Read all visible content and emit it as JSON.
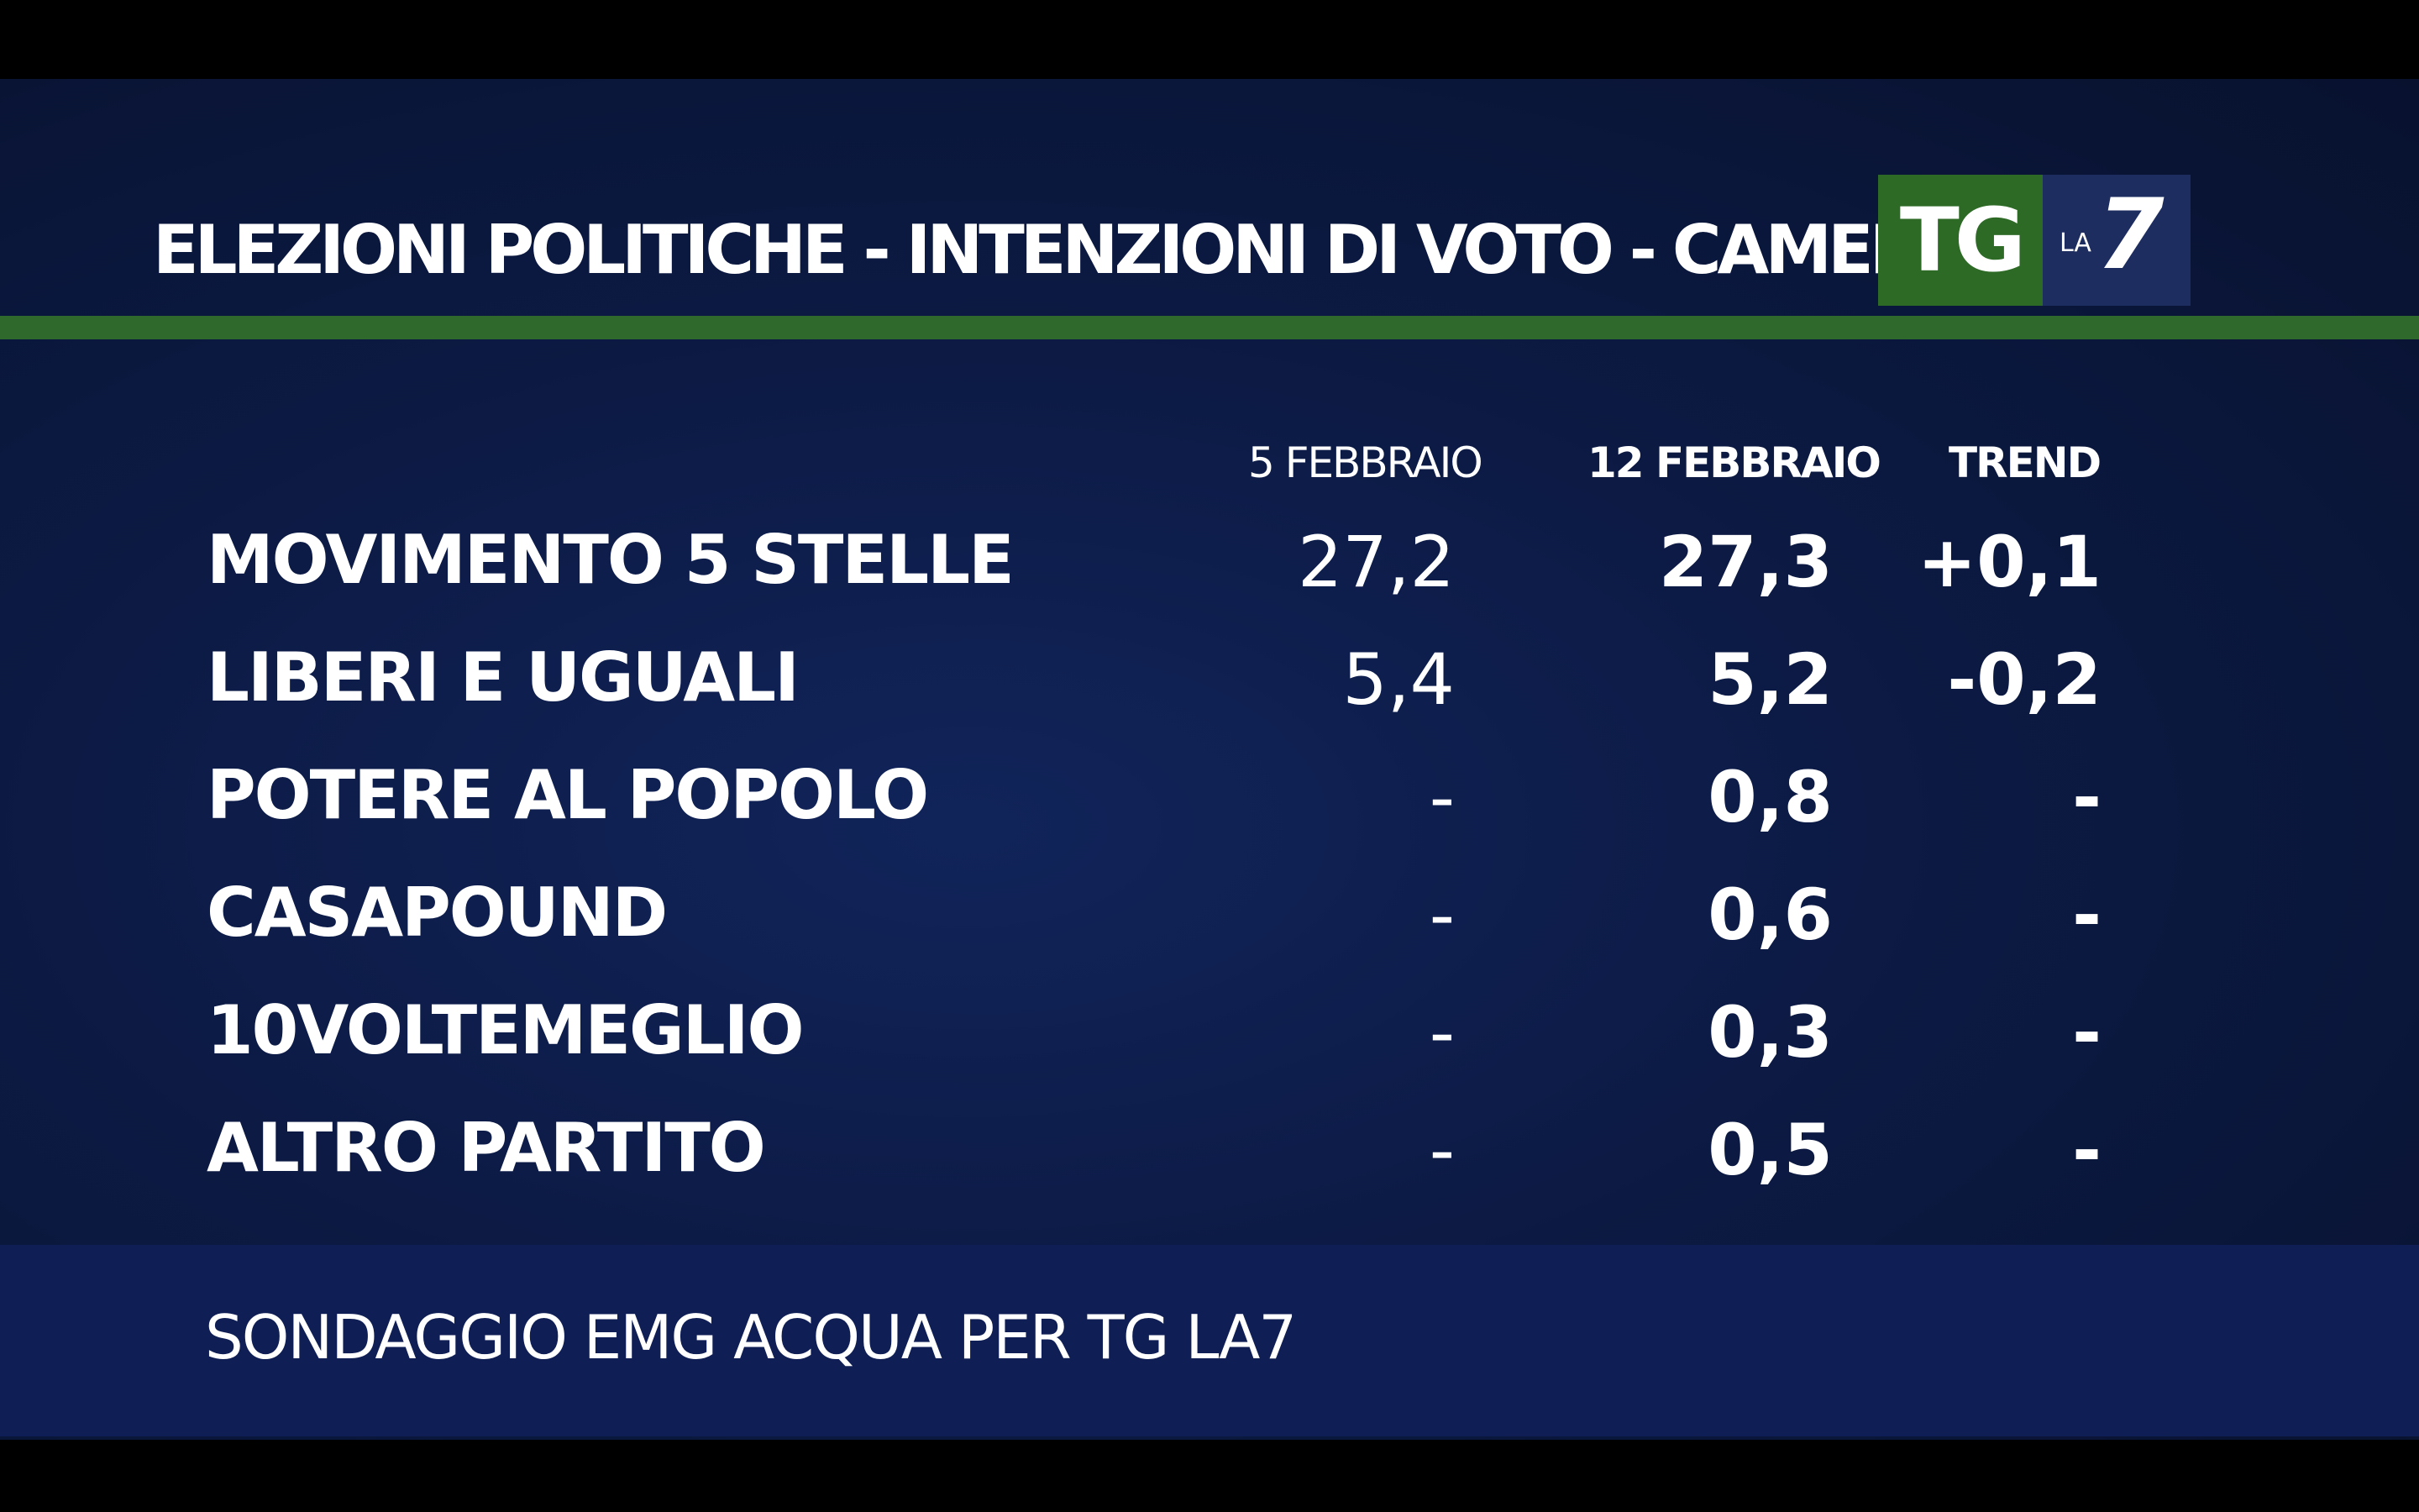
{
  "header": {
    "title": "ELEZIONI POLITICHE - INTENZIONI DI VOTO - CAMERA",
    "logo_tg": "TG",
    "logo_la": "LA",
    "logo_7": "7"
  },
  "colors": {
    "background": "#0c1a44",
    "accent_green": "#2f6a2c",
    "logo_green": "#2d6a26",
    "logo_blue": "#1d2d60",
    "footer": "#0f1e54",
    "text": "#ffffff"
  },
  "chart_data": {
    "type": "table",
    "columns": [
      "5 FEBBRAIO",
      "12 FEBBRAIO",
      "TREND"
    ],
    "rows": [
      {
        "party": "MOVIMENTO 5 STELLE",
        "prev": "27,2",
        "curr": "27,3",
        "trend": "+0,1"
      },
      {
        "party": "LIBERI E UGUALI",
        "prev": "5,4",
        "curr": "5,2",
        "trend": "-0,2"
      },
      {
        "party": "POTERE AL POPOLO",
        "prev": "-",
        "curr": "0,8",
        "trend": "-"
      },
      {
        "party": "CASAPOUND",
        "prev": "-",
        "curr": "0,6",
        "trend": "-"
      },
      {
        "party": "10VOLTEMEGLIO",
        "prev": "-",
        "curr": "0,3",
        "trend": "-"
      },
      {
        "party": "ALTRO PARTITO",
        "prev": "-",
        "curr": "0,5",
        "trend": "-"
      }
    ]
  },
  "footer": {
    "source": "SONDAGGIO EMG ACQUA PER TG LA7"
  }
}
